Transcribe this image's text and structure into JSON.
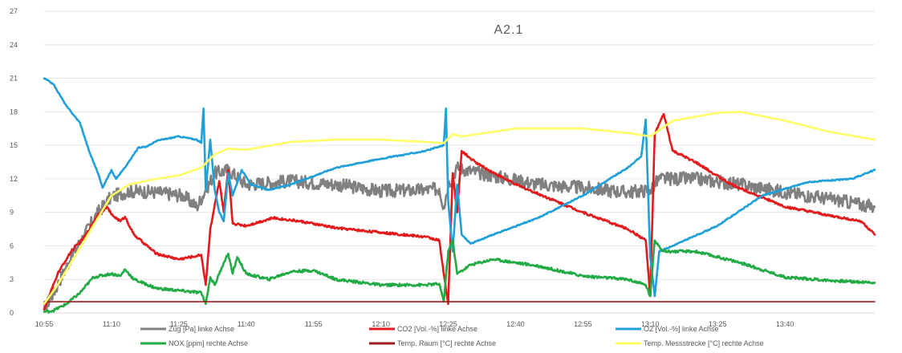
{
  "chart_data": {
    "type": "line",
    "title": "A2.1",
    "ylim": [
      0,
      27
    ],
    "yticks": [
      0,
      3,
      6,
      9,
      12,
      15,
      18,
      21,
      24,
      27
    ],
    "xlim": [
      "10:55",
      "14:00"
    ],
    "xticks": [
      "10:55",
      "11:10",
      "11:25",
      "11:40",
      "11:55",
      "12:10",
      "12:25",
      "12:40",
      "12:55",
      "13:10",
      "13:25",
      "13:40"
    ],
    "grid": "horizontal",
    "legend_placement": "bottom",
    "series": [
      {
        "name": "Zug [Pa] linke Achse",
        "color": "#808080",
        "noise": 0.6,
        "points": [
          [
            "10:55",
            0.3
          ],
          [
            "10:58",
            2.5
          ],
          [
            "11:01",
            5.0
          ],
          [
            "11:04",
            7.0
          ],
          [
            "11:07",
            9.0
          ],
          [
            "11:10",
            10.4
          ],
          [
            "11:14",
            10.9
          ],
          [
            "11:20",
            10.8
          ],
          [
            "11:26",
            10.5
          ],
          [
            "11:29",
            9.5
          ],
          [
            "11:31",
            11.0
          ],
          [
            "11:33",
            12.5
          ],
          [
            "11:36",
            12.8
          ],
          [
            "11:40",
            11.5
          ],
          [
            "11:50",
            11.8
          ],
          [
            "12:00",
            11.5
          ],
          [
            "12:10",
            10.9
          ],
          [
            "12:20",
            11.0
          ],
          [
            "12:23",
            11.1
          ],
          [
            "12:24",
            9.5
          ],
          [
            "12:25",
            11.5
          ],
          [
            "12:27",
            13.0
          ],
          [
            "12:32",
            12.5
          ],
          [
            "12:45",
            11.5
          ],
          [
            "12:55",
            11.2
          ],
          [
            "13:05",
            10.8
          ],
          [
            "13:10",
            11.0
          ],
          [
            "13:12",
            12.0
          ],
          [
            "13:20",
            12.0
          ],
          [
            "13:30",
            11.5
          ],
          [
            "13:40",
            10.8
          ],
          [
            "13:50",
            10.2
          ],
          [
            "14:00",
            9.5
          ]
        ]
      },
      {
        "name": "CO2 [Vol.-%] linke Achse",
        "color": "#e31a1c",
        "noise": 0.1,
        "points": [
          [
            "10:55",
            0.3
          ],
          [
            "10:58",
            3.5
          ],
          [
            "11:01",
            5.5
          ],
          [
            "11:04",
            6.8
          ],
          [
            "11:07",
            8.8
          ],
          [
            "11:09",
            9.5
          ],
          [
            "11:10",
            8.8
          ],
          [
            "11:12",
            8.2
          ],
          [
            "11:13",
            8.6
          ],
          [
            "11:15",
            7.0
          ],
          [
            "11:20",
            5.3
          ],
          [
            "11:25",
            4.8
          ],
          [
            "11:29",
            5.1
          ],
          [
            "11:30",
            5.2
          ],
          [
            "11:31",
            2.5
          ],
          [
            "11:32",
            7.5
          ],
          [
            "11:34",
            11.8
          ],
          [
            "11:35",
            9.0
          ],
          [
            "11:36",
            12.8
          ],
          [
            "11:37",
            8.0
          ],
          [
            "11:40",
            7.8
          ],
          [
            "11:46",
            8.5
          ],
          [
            "11:52",
            8.2
          ],
          [
            "12:00",
            7.6
          ],
          [
            "12:10",
            7.2
          ],
          [
            "12:20",
            6.8
          ],
          [
            "12:23",
            6.5
          ],
          [
            "12:24",
            3.5
          ],
          [
            "12:25",
            0.8
          ],
          [
            "12:26",
            12.5
          ],
          [
            "12:27",
            9.0
          ],
          [
            "12:28",
            14.5
          ],
          [
            "12:30",
            13.8
          ],
          [
            "12:33",
            13.0
          ],
          [
            "12:40",
            11.5
          ],
          [
            "12:55",
            9.0
          ],
          [
            "13:05",
            7.5
          ],
          [
            "13:09",
            6.5
          ],
          [
            "13:10",
            1.5
          ],
          [
            "13:11",
            16.0
          ],
          [
            "13:13",
            17.8
          ],
          [
            "13:15",
            14.5
          ],
          [
            "13:20",
            13.5
          ],
          [
            "13:28",
            11.5
          ],
          [
            "13:40",
            9.5
          ],
          [
            "13:50",
            8.7
          ],
          [
            "13:57",
            8.2
          ],
          [
            "14:00",
            7.0
          ]
        ]
      },
      {
        "name": "O2 [Vol.-%] linke Achse",
        "color": "#1fa0d8",
        "noise": 0.05,
        "points": [
          [
            "10:55",
            21.0
          ],
          [
            "10:57",
            20.5
          ],
          [
            "11:00",
            18.5
          ],
          [
            "11:03",
            17.0
          ],
          [
            "11:05",
            14.5
          ],
          [
            "11:07",
            12.5
          ],
          [
            "11:08",
            11.2
          ],
          [
            "11:10",
            12.8
          ],
          [
            "11:11",
            12.0
          ],
          [
            "11:13",
            13.0
          ],
          [
            "11:16",
            14.8
          ],
          [
            "11:18",
            14.9
          ],
          [
            "11:20",
            15.4
          ],
          [
            "11:25",
            15.8
          ],
          [
            "11:29",
            15.5
          ],
          [
            "11:30",
            15.2
          ],
          [
            "11:30.5",
            18.3
          ],
          [
            "11:31",
            11.0
          ],
          [
            "11:32",
            15.5
          ],
          [
            "11:33",
            11.0
          ],
          [
            "11:34",
            9.0
          ],
          [
            "11:35",
            8.2
          ],
          [
            "11:36",
            12.5
          ],
          [
            "11:37",
            10.5
          ],
          [
            "11:39",
            12.8
          ],
          [
            "11:41",
            11.5
          ],
          [
            "11:45",
            11.0
          ],
          [
            "11:50",
            11.5
          ],
          [
            "12:00",
            13.0
          ],
          [
            "12:10",
            13.8
          ],
          [
            "12:20",
            14.5
          ],
          [
            "12:24",
            15.0
          ],
          [
            "12:24.5",
            18.3
          ],
          [
            "12:25",
            10.0
          ],
          [
            "12:26",
            5.5
          ],
          [
            "12:27",
            11.5
          ],
          [
            "12:28",
            7.0
          ],
          [
            "12:30",
            6.2
          ],
          [
            "12:35",
            7.0
          ],
          [
            "12:45",
            8.5
          ],
          [
            "12:55",
            10.5
          ],
          [
            "13:05",
            13.0
          ],
          [
            "13:08",
            14.0
          ],
          [
            "13:09",
            17.3
          ],
          [
            "13:10",
            5.0
          ],
          [
            "13:11",
            1.5
          ],
          [
            "13:12",
            5.5
          ],
          [
            "13:15",
            6.0
          ],
          [
            "13:25",
            7.8
          ],
          [
            "13:35",
            10.5
          ],
          [
            "13:45",
            11.7
          ],
          [
            "13:55",
            12.0
          ],
          [
            "14:00",
            12.8
          ]
        ]
      },
      {
        "name": "NOX [ppm] rechte Achse",
        "color": "#22aa44",
        "noise": 0.12,
        "points": [
          [
            "10:55",
            0.1
          ],
          [
            "10:57",
            0.2
          ],
          [
            "11:00",
            0.8
          ],
          [
            "11:03",
            1.8
          ],
          [
            "11:06",
            3.2
          ],
          [
            "11:10",
            3.5
          ],
          [
            "11:12",
            3.3
          ],
          [
            "11:13",
            3.9
          ],
          [
            "11:15",
            3.0
          ],
          [
            "11:20",
            2.2
          ],
          [
            "11:25",
            2.0
          ],
          [
            "11:30",
            1.8
          ],
          [
            "11:31",
            0.8
          ],
          [
            "11:32",
            3.2
          ],
          [
            "11:33",
            2.5
          ],
          [
            "11:35",
            4.5
          ],
          [
            "11:36",
            5.3
          ],
          [
            "11:37",
            3.5
          ],
          [
            "11:38",
            5.0
          ],
          [
            "11:40",
            3.5
          ],
          [
            "11:45",
            3.0
          ],
          [
            "11:50",
            3.7
          ],
          [
            "11:55",
            3.8
          ],
          [
            "12:00",
            3.0
          ],
          [
            "12:10",
            2.5
          ],
          [
            "12:20",
            2.5
          ],
          [
            "12:23",
            2.6
          ],
          [
            "12:24",
            1.0
          ],
          [
            "12:25",
            5.5
          ],
          [
            "12:26",
            6.5
          ],
          [
            "12:27",
            3.5
          ],
          [
            "12:30",
            4.3
          ],
          [
            "12:35",
            4.8
          ],
          [
            "12:45",
            4.2
          ],
          [
            "12:55",
            3.3
          ],
          [
            "13:05",
            3.0
          ],
          [
            "13:09",
            2.5
          ],
          [
            "13:10",
            1.5
          ],
          [
            "13:11",
            6.5
          ],
          [
            "13:13",
            5.5
          ],
          [
            "13:20",
            5.5
          ],
          [
            "13:30",
            4.5
          ],
          [
            "13:40",
            3.2
          ],
          [
            "13:50",
            2.9
          ],
          [
            "14:00",
            2.7
          ]
        ]
      },
      {
        "name": "Temp. Raum [°C] rechte Achse",
        "color": "#9c1c1c",
        "noise": 0,
        "points": [
          [
            "10:55",
            1.0
          ],
          [
            "14:00",
            1.0
          ]
        ]
      },
      {
        "name": "Temp. Messstrecke [°C] rechte Achse",
        "color": "#ffff66",
        "noise": 0,
        "points": [
          [
            "10:55",
            0.8
          ],
          [
            "10:58",
            2.5
          ],
          [
            "11:01",
            4.5
          ],
          [
            "11:04",
            6.5
          ],
          [
            "11:07",
            8.5
          ],
          [
            "11:10",
            10.5
          ],
          [
            "11:14",
            11.5
          ],
          [
            "11:20",
            12.0
          ],
          [
            "11:25",
            12.3
          ],
          [
            "11:30",
            13.0
          ],
          [
            "11:33",
            14.2
          ],
          [
            "11:36",
            14.7
          ],
          [
            "11:40",
            14.6
          ],
          [
            "11:50",
            15.3
          ],
          [
            "12:00",
            15.5
          ],
          [
            "12:10",
            15.5
          ],
          [
            "12:20",
            15.3
          ],
          [
            "12:24",
            15.2
          ],
          [
            "12:26",
            16.0
          ],
          [
            "12:28",
            15.8
          ],
          [
            "12:40",
            16.5
          ],
          [
            "12:55",
            16.5
          ],
          [
            "13:05",
            16.1
          ],
          [
            "13:10",
            15.8
          ],
          [
            "13:15",
            17.2
          ],
          [
            "13:25",
            17.9
          ],
          [
            "13:30",
            18.0
          ],
          [
            "13:40",
            17.2
          ],
          [
            "13:50",
            16.2
          ],
          [
            "14:00",
            15.5
          ]
        ]
      }
    ]
  }
}
